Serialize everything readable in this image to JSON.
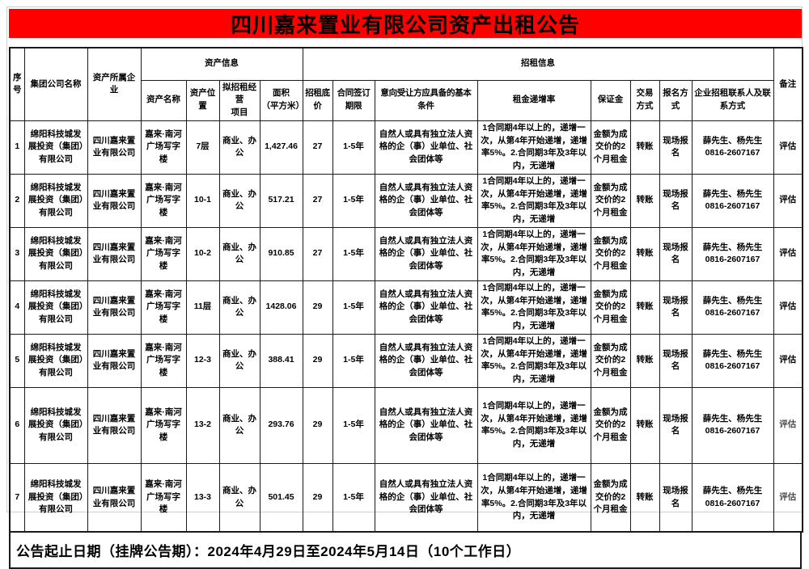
{
  "title": "四川嘉来置业有限公司资产出租公告",
  "colors": {
    "title_bg": "#fe0000",
    "border": "#1a1a1a"
  },
  "table": {
    "top_headers": {
      "serial": "序号",
      "group_company": "集团公司名称",
      "asset_owner": "资产所属企业",
      "asset_info": "资产信息",
      "leasing_info": "招租信息",
      "remark": "备注"
    },
    "sub_headers": [
      "资产名称",
      "资产位置",
      "拟招租经营\n项目",
      "面积\n（平方米）",
      "招租底价",
      "合同签订期限",
      "意向受让方应具备的基本条件",
      "租金递增率",
      "保证金",
      "交易方式",
      "报名方式",
      "企业招租联系人及联系方式"
    ],
    "rows": [
      {
        "no": "1",
        "group": "绵阳科技城发展投资（集团）有限公司",
        "owner": "四川嘉来置业有限公司",
        "name": "嘉来·南河广场写字楼",
        "position": "7层",
        "project": "商业、办公",
        "area": "1,427.46",
        "price": "27",
        "term": "1-5年",
        "conditions": "自然人或具有独立法人资格的企（事）业单位、社会团体等",
        "increase": "1合同期4年以上的，递增一次，从第4年开始递增，递增率5%。2.合同期3年及3年以内，无递增",
        "deposit": "金额为成交价的2个月租金",
        "trade": "转账",
        "signup": "现场报名",
        "contact": "薛先生、杨先生\n0816-2607167",
        "remark": "评估",
        "remark_light": false
      },
      {
        "no": "2",
        "group": "绵阳科技城发展投资（集团）有限公司",
        "owner": "四川嘉来置业有限公司",
        "name": "嘉来·南河广场写字楼",
        "position": "10-1",
        "project": "商业、办公",
        "area": "517.21",
        "price": "27",
        "term": "1-5年",
        "conditions": "自然人或具有独立法人资格的企（事）业单位、社会团体等",
        "increase": "1合同期4年以上的，递增一次，从第4年开始递增，递增率5%。2.合同期3年及3年以内，无递增",
        "deposit": "金额为成交价的2个月租金",
        "trade": "转账",
        "signup": "现场报名",
        "contact": "薛先生、杨先生\n0816-2607167",
        "remark": "评估",
        "remark_light": false
      },
      {
        "no": "3",
        "group": "绵阳科技城发展投资（集团）有限公司",
        "owner": "四川嘉来置业有限公司",
        "name": "嘉来·南河广场写字楼",
        "position": "10-2",
        "project": "商业、办公",
        "area": "910.85",
        "price": "27",
        "term": "1-5年",
        "conditions": "自然人或具有独立法人资格的企（事）业单位、社会团体等",
        "increase": "1合同期4年以上的，递增一次，从第4年开始递增，递增率5%。2.合同期3年及3年以内，无递增",
        "deposit": "金额为成交价的2个月租金",
        "trade": "转账",
        "signup": "现场报名",
        "contact": "薛先生、杨先生\n0816-2607167",
        "remark": "评估",
        "remark_light": false
      },
      {
        "no": "4",
        "group": "绵阳科技城发展投资（集团）有限公司",
        "owner": "四川嘉来置业有限公司",
        "name": "嘉来·南河广场写字楼",
        "position": "11层",
        "project": "商业、办公",
        "area": "1428.06",
        "price": "29",
        "term": "1-5年",
        "conditions": "自然人或具有独立法人资格的企（事）业单位、社会团体等",
        "increase": "1合同期4年以上的，递增一次，从第4年开始递增，递增率5%。2.合同期3年及3年以内，无递增",
        "deposit": "金额为成交价的2个月租金",
        "trade": "转账",
        "signup": "现场报名",
        "contact": "薛先生、杨先生\n0816-2607167",
        "remark": "评估",
        "remark_light": false
      },
      {
        "no": "5",
        "group": "绵阳科技城发展投资（集团）有限公司",
        "owner": "四川嘉来置业有限公司",
        "name": "嘉来·南河广场写字楼",
        "position": "12-3",
        "project": "商业、办公",
        "area": "388.41",
        "price": "29",
        "term": "1-5年",
        "conditions": "自然人或具有独立法人资格的企（事）业单位、社会团体等",
        "increase": "1合同期4年以上的，递增一次，从第4年开始递增，递增率5%。2.合同期3年及3年以内，无递增",
        "deposit": "金额为成交价的2个月租金",
        "trade": "转账",
        "signup": "现场报名",
        "contact": "薛先生、杨先生\n0816-2607167",
        "remark": "评估",
        "remark_light": false
      },
      {
        "no": "6",
        "group": "绵阳科技城发展投资（集团）有限公司",
        "owner": "四川嘉来置业有限公司",
        "name": "嘉来·南河广场写字楼",
        "position": "13-2",
        "project": "商业、办公",
        "area": "293.76",
        "price": "29",
        "term": "1-5年",
        "conditions": "自然人或具有独立法人资格的企（事）业单位、社会团体等",
        "increase": "1合同期4年以上的，递增一次，从第4年开始递增，递增率5%。2.合同期3年及3年以内，无递增",
        "deposit": "金额为成交价的2个月租金",
        "trade": "转账",
        "signup": "现场报名",
        "contact": "薛先生、杨先生\n0816-2607167",
        "remark": "评估",
        "remark_light": true
      },
      {
        "no": "7",
        "group": "绵阳科技城发展投资（集团）有限公司",
        "owner": "四川嘉来置业有限公司",
        "name": "嘉来·南河广场写字楼",
        "position": "13-3",
        "project": "商业、办公",
        "area": "501.45",
        "price": "29",
        "term": "1-5年",
        "conditions": "自然人或具有独立法人资格的企（事）业单位、社会团体等",
        "increase": "1合同期4年以上的，递增一次，从第4年开始递增，递增率5%。2.合同期3年及3年以内，无递增",
        "deposit": "金额为成交价的2个月租金",
        "trade": "转账",
        "signup": "现场报名",
        "contact": "薛先生、杨先生\n0816-2607167",
        "remark": "评估",
        "remark_light": true
      }
    ]
  },
  "footer": "公告起止日期（挂牌公告期）：2024年4月29日至2024年5月14日（10个工作日）"
}
